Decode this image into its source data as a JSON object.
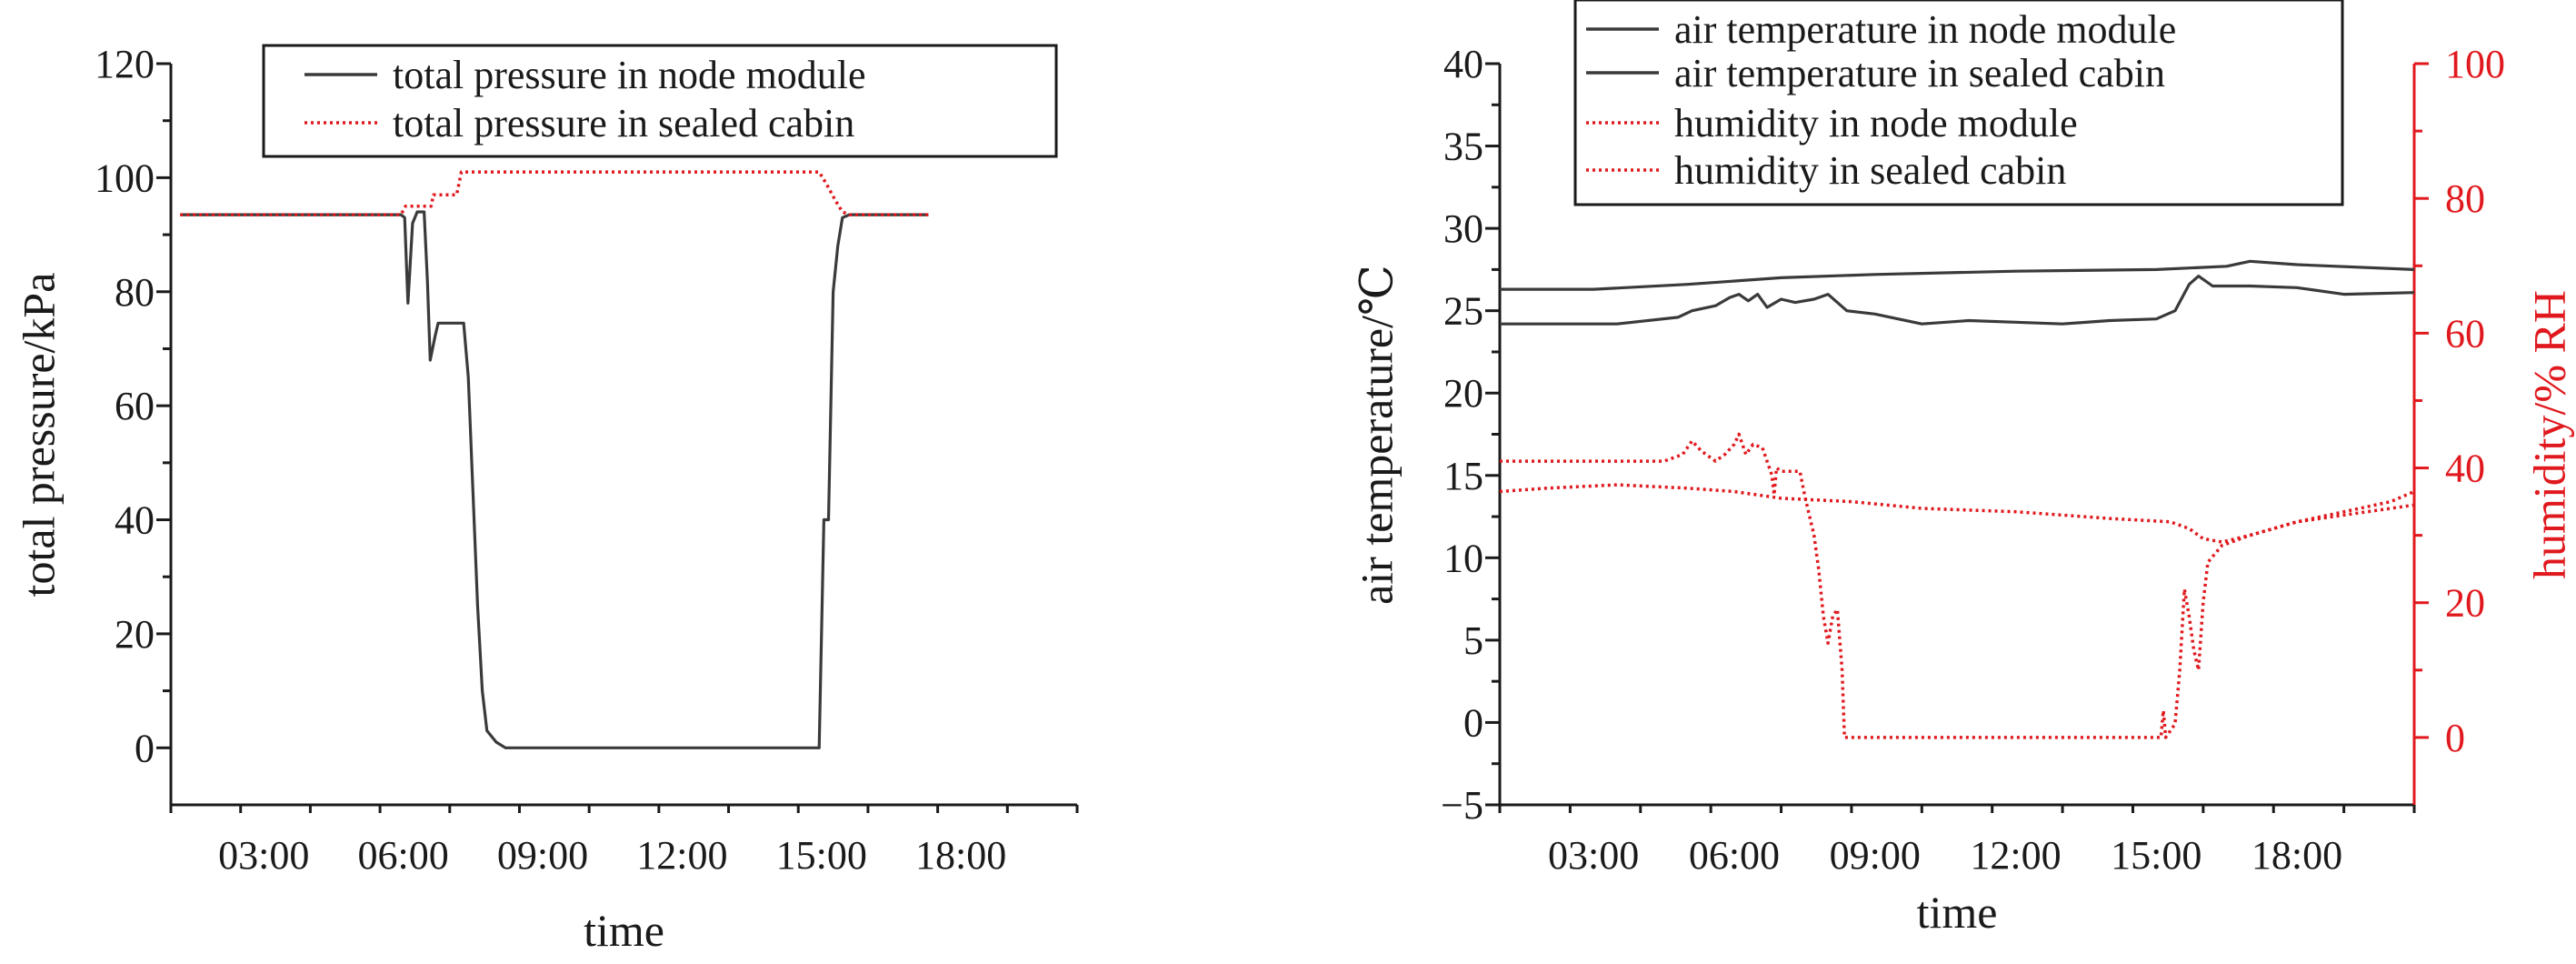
{
  "chart_data": [
    {
      "type": "line",
      "title": "",
      "xlabel": "time",
      "ylabel": "total pressure/kPa",
      "xlim": [
        1.0,
        20.5
      ],
      "ylim": [
        -10,
        120
      ],
      "xticks": [
        3,
        6,
        9,
        12,
        15,
        18
      ],
      "xtick_labels": [
        "03:00",
        "06:00",
        "09:00",
        "12:00",
        "15:00",
        "18:00"
      ],
      "yticks": [
        0,
        20,
        40,
        60,
        80,
        100,
        120
      ],
      "ytick_labels": [
        "0",
        "20",
        "40",
        "60",
        "80",
        "100",
        "120"
      ],
      "grid": false,
      "legend_position": "top-right",
      "series": [
        {
          "name": "total pressure in node module",
          "color": "#3a3a3a",
          "style": "solid",
          "points": [
            [
              1.2,
              93.5
            ],
            [
              5.95,
              93.5
            ],
            [
              6.03,
              93
            ],
            [
              6.1,
              78
            ],
            [
              6.2,
              92
            ],
            [
              6.3,
              94
            ],
            [
              6.45,
              94
            ],
            [
              6.52,
              82
            ],
            [
              6.58,
              68
            ],
            [
              6.68,
              72
            ],
            [
              6.75,
              74.5
            ],
            [
              7.3,
              74.5
            ],
            [
              7.4,
              65
            ],
            [
              7.5,
              45
            ],
            [
              7.6,
              25
            ],
            [
              7.7,
              10
            ],
            [
              7.8,
              3
            ],
            [
              8.0,
              1
            ],
            [
              8.2,
              0
            ],
            [
              14.95,
              0
            ],
            [
              15.05,
              40
            ],
            [
              15.15,
              40
            ],
            [
              15.25,
              80
            ],
            [
              15.35,
              88
            ],
            [
              15.45,
              93
            ],
            [
              15.6,
              93.5
            ],
            [
              17.3,
              93.5
            ]
          ]
        },
        {
          "name": "total pressure in sealed cabin",
          "color": "#e0191e",
          "style": "dotted",
          "points": [
            [
              1.2,
              93.5
            ],
            [
              5.95,
              93.5
            ],
            [
              6.05,
              95
            ],
            [
              6.6,
              95
            ],
            [
              6.65,
              97
            ],
            [
              7.15,
              97
            ],
            [
              7.25,
              101
            ],
            [
              14.95,
              101
            ],
            [
              15.1,
              99
            ],
            [
              15.3,
              96
            ],
            [
              15.45,
              94
            ],
            [
              15.6,
              93.5
            ],
            [
              17.3,
              93.5
            ]
          ]
        }
      ]
    },
    {
      "type": "line",
      "title": "",
      "xlabel": "time",
      "ylabel": "air temperature/℃",
      "ylabel_right": "humidity/% RH",
      "xlim": [
        1.0,
        20.5
      ],
      "ylim": [
        -5,
        40
      ],
      "ylim_right": [
        -10,
        100
      ],
      "xticks": [
        3,
        6,
        9,
        12,
        15,
        18
      ],
      "xtick_labels": [
        "03:00",
        "06:00",
        "09:00",
        "12:00",
        "15:00",
        "18:00"
      ],
      "yticks": [
        -5,
        0,
        5,
        10,
        15,
        20,
        25,
        30,
        35,
        40
      ],
      "ytick_labels": [
        "−5",
        "0",
        "5",
        "10",
        "15",
        "20",
        "25",
        "30",
        "35",
        "40"
      ],
      "yticks_right": [
        0,
        20,
        40,
        60,
        80,
        100
      ],
      "ytick_labels_right": [
        "0",
        "20",
        "40",
        "60",
        "80",
        "100"
      ],
      "grid": false,
      "legend_position": "top-left",
      "series": [
        {
          "name": "air temperature in node module",
          "color": "#3a3a3a",
          "style": "solid",
          "axis": "left",
          "points": [
            [
              1.0,
              26.3
            ],
            [
              3.0,
              26.3
            ],
            [
              5.0,
              26.6
            ],
            [
              7.0,
              27.0
            ],
            [
              9.0,
              27.2
            ],
            [
              12.0,
              27.4
            ],
            [
              15.0,
              27.5
            ],
            [
              16.5,
              27.7
            ],
            [
              17.0,
              28.0
            ],
            [
              18.0,
              27.8
            ],
            [
              20.5,
              27.5
            ]
          ]
        },
        {
          "name": "air temperature in sealed cabin",
          "color": "#3a3a3a",
          "style": "solid",
          "axis": "left",
          "points": [
            [
              1.0,
              24.2
            ],
            [
              3.5,
              24.2
            ],
            [
              4.8,
              24.6
            ],
            [
              5.1,
              25.0
            ],
            [
              5.6,
              25.3
            ],
            [
              5.9,
              25.8
            ],
            [
              6.1,
              26.0
            ],
            [
              6.3,
              25.6
            ],
            [
              6.5,
              26.0
            ],
            [
              6.7,
              25.2
            ],
            [
              7.0,
              25.7
            ],
            [
              7.3,
              25.5
            ],
            [
              7.7,
              25.7
            ],
            [
              8.0,
              26.0
            ],
            [
              8.4,
              25.0
            ],
            [
              9.0,
              24.8
            ],
            [
              10.0,
              24.2
            ],
            [
              11.0,
              24.4
            ],
            [
              12.0,
              24.3
            ],
            [
              13.0,
              24.2
            ],
            [
              14.0,
              24.4
            ],
            [
              15.0,
              24.5
            ],
            [
              15.4,
              25.0
            ],
            [
              15.7,
              26.6
            ],
            [
              15.9,
              27.1
            ],
            [
              16.2,
              26.5
            ],
            [
              17.0,
              26.5
            ],
            [
              18.0,
              26.4
            ],
            [
              19.0,
              26.0
            ],
            [
              20.5,
              26.1
            ]
          ]
        },
        {
          "name": "humidity in node module",
          "color": "#e0191e",
          "style": "dotted",
          "axis": "right",
          "points": [
            [
              1.0,
              41
            ],
            [
              4.5,
              41
            ],
            [
              4.9,
              42
            ],
            [
              5.1,
              44
            ],
            [
              5.3,
              42.5
            ],
            [
              5.6,
              41
            ],
            [
              5.8,
              42
            ],
            [
              6.0,
              43.5
            ],
            [
              6.1,
              45
            ],
            [
              6.25,
              42
            ],
            [
              6.4,
              43.5
            ],
            [
              6.6,
              43
            ],
            [
              6.8,
              39
            ],
            [
              6.85,
              36
            ],
            [
              6.9,
              40
            ],
            [
              7.0,
              39.5
            ],
            [
              7.4,
              39.5
            ],
            [
              7.5,
              36
            ],
            [
              7.7,
              30
            ],
            [
              7.8,
              25
            ],
            [
              7.9,
              18
            ],
            [
              8.0,
              14
            ],
            [
              8.1,
              18
            ],
            [
              8.2,
              19
            ],
            [
              8.3,
              10
            ],
            [
              8.35,
              0
            ],
            [
              15.1,
              0
            ],
            [
              15.15,
              4
            ],
            [
              15.2,
              0
            ],
            [
              15.4,
              2
            ],
            [
              15.5,
              10
            ],
            [
              15.6,
              22
            ],
            [
              15.7,
              18
            ],
            [
              15.8,
              13
            ],
            [
              15.9,
              10
            ],
            [
              16.0,
              20
            ],
            [
              16.1,
              26
            ],
            [
              16.4,
              28.5
            ],
            [
              17.0,
              30
            ],
            [
              18.0,
              32
            ],
            [
              19.0,
              33.5
            ],
            [
              20.0,
              35
            ],
            [
              20.5,
              36.5
            ]
          ]
        },
        {
          "name": "humidity in sealed cabin",
          "color": "#e0191e",
          "style": "dotted",
          "axis": "right",
          "points": [
            [
              1.0,
              36.5
            ],
            [
              2.0,
              37
            ],
            [
              3.5,
              37.5
            ],
            [
              5.0,
              37
            ],
            [
              6.0,
              36.5
            ],
            [
              7.0,
              35.5
            ],
            [
              8.5,
              35
            ],
            [
              10.0,
              34
            ],
            [
              12.0,
              33.5
            ],
            [
              14.0,
              32.5
            ],
            [
              15.3,
              32
            ],
            [
              15.7,
              31
            ],
            [
              16.0,
              29.5
            ],
            [
              16.4,
              29
            ],
            [
              17.0,
              30
            ],
            [
              18.0,
              32
            ],
            [
              19.0,
              33
            ],
            [
              20.0,
              34
            ],
            [
              20.5,
              34.5
            ]
          ]
        }
      ]
    }
  ]
}
